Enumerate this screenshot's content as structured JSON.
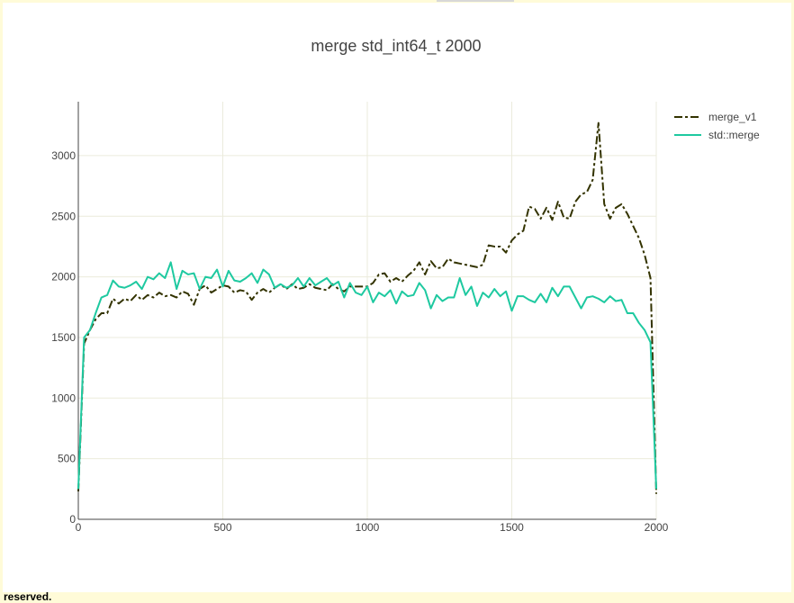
{
  "chart_data": {
    "type": "line",
    "title": "merge std_int64_t 2000",
    "x": [
      0,
      20,
      40,
      60,
      80,
      100,
      120,
      140,
      160,
      180,
      200,
      220,
      240,
      260,
      280,
      300,
      320,
      340,
      360,
      380,
      400,
      420,
      440,
      460,
      480,
      500,
      520,
      540,
      560,
      580,
      600,
      620,
      640,
      660,
      680,
      700,
      720,
      740,
      760,
      780,
      800,
      820,
      840,
      860,
      880,
      900,
      920,
      940,
      960,
      980,
      1000,
      1020,
      1040,
      1060,
      1080,
      1100,
      1120,
      1140,
      1160,
      1180,
      1200,
      1220,
      1240,
      1260,
      1280,
      1300,
      1320,
      1340,
      1360,
      1380,
      1400,
      1420,
      1440,
      1460,
      1480,
      1500,
      1520,
      1540,
      1560,
      1580,
      1600,
      1620,
      1640,
      1660,
      1680,
      1700,
      1720,
      1740,
      1760,
      1780,
      1800,
      1820,
      1840,
      1860,
      1880,
      1900,
      1920,
      1940,
      1960,
      1980,
      2000
    ],
    "series": [
      {
        "name": "merge_v1",
        "color": "#333300",
        "dash": "dashdot",
        "values": [
          230,
          1450,
          1560,
          1650,
          1700,
          1700,
          1820,
          1780,
          1820,
          1800,
          1850,
          1810,
          1850,
          1830,
          1870,
          1840,
          1850,
          1830,
          1880,
          1860,
          1770,
          1900,
          1930,
          1870,
          1900,
          1930,
          1920,
          1870,
          1890,
          1880,
          1810,
          1870,
          1900,
          1870,
          1910,
          1940,
          1900,
          1940,
          1900,
          1910,
          1940,
          1910,
          1900,
          1890,
          1940,
          1900,
          1880,
          1920,
          1920,
          1920,
          1920,
          1950,
          2020,
          2030,
          1960,
          1990,
          1960,
          2010,
          2050,
          2120,
          2020,
          2130,
          2070,
          2080,
          2150,
          2120,
          2110,
          2100,
          2090,
          2080,
          2100,
          2260,
          2250,
          2250,
          2200,
          2300,
          2350,
          2380,
          2580,
          2560,
          2480,
          2570,
          2470,
          2620,
          2490,
          2480,
          2620,
          2680,
          2700,
          2800,
          3270,
          2600,
          2480,
          2570,
          2600,
          2520,
          2420,
          2320,
          2180,
          1990,
          210
        ]
      },
      {
        "name": "std::merge",
        "color": "#1ec9a0",
        "dash": "solid",
        "values": [
          250,
          1500,
          1560,
          1700,
          1830,
          1850,
          1970,
          1920,
          1910,
          1930,
          1960,
          1900,
          2000,
          1980,
          2030,
          1990,
          2120,
          1900,
          2050,
          2020,
          2030,
          1900,
          2000,
          1990,
          2060,
          1920,
          2050,
          1970,
          1960,
          1990,
          2030,
          1950,
          2060,
          2020,
          1910,
          1940,
          1910,
          1930,
          1990,
          1920,
          1990,
          1930,
          1960,
          1990,
          1930,
          1960,
          1830,
          1950,
          1870,
          1850,
          1920,
          1790,
          1870,
          1840,
          1890,
          1780,
          1880,
          1840,
          1850,
          1950,
          1890,
          1740,
          1850,
          1800,
          1830,
          1830,
          1990,
          1850,
          1920,
          1760,
          1870,
          1830,
          1900,
          1840,
          1880,
          1720,
          1840,
          1840,
          1810,
          1790,
          1860,
          1790,
          1910,
          1840,
          1920,
          1920,
          1830,
          1740,
          1830,
          1840,
          1820,
          1790,
          1840,
          1800,
          1810,
          1700,
          1700,
          1620,
          1560,
          1460,
          250
        ]
      }
    ],
    "xlim": [
      0,
      2000
    ],
    "xticks": [
      0,
      500,
      1000,
      1500,
      2000
    ],
    "ylim": [
      0,
      3445
    ],
    "yticks": [
      0,
      500,
      1000,
      1500,
      2000,
      2500,
      3000
    ],
    "grid": true,
    "legend": "top-right"
  },
  "footer": "reserved."
}
